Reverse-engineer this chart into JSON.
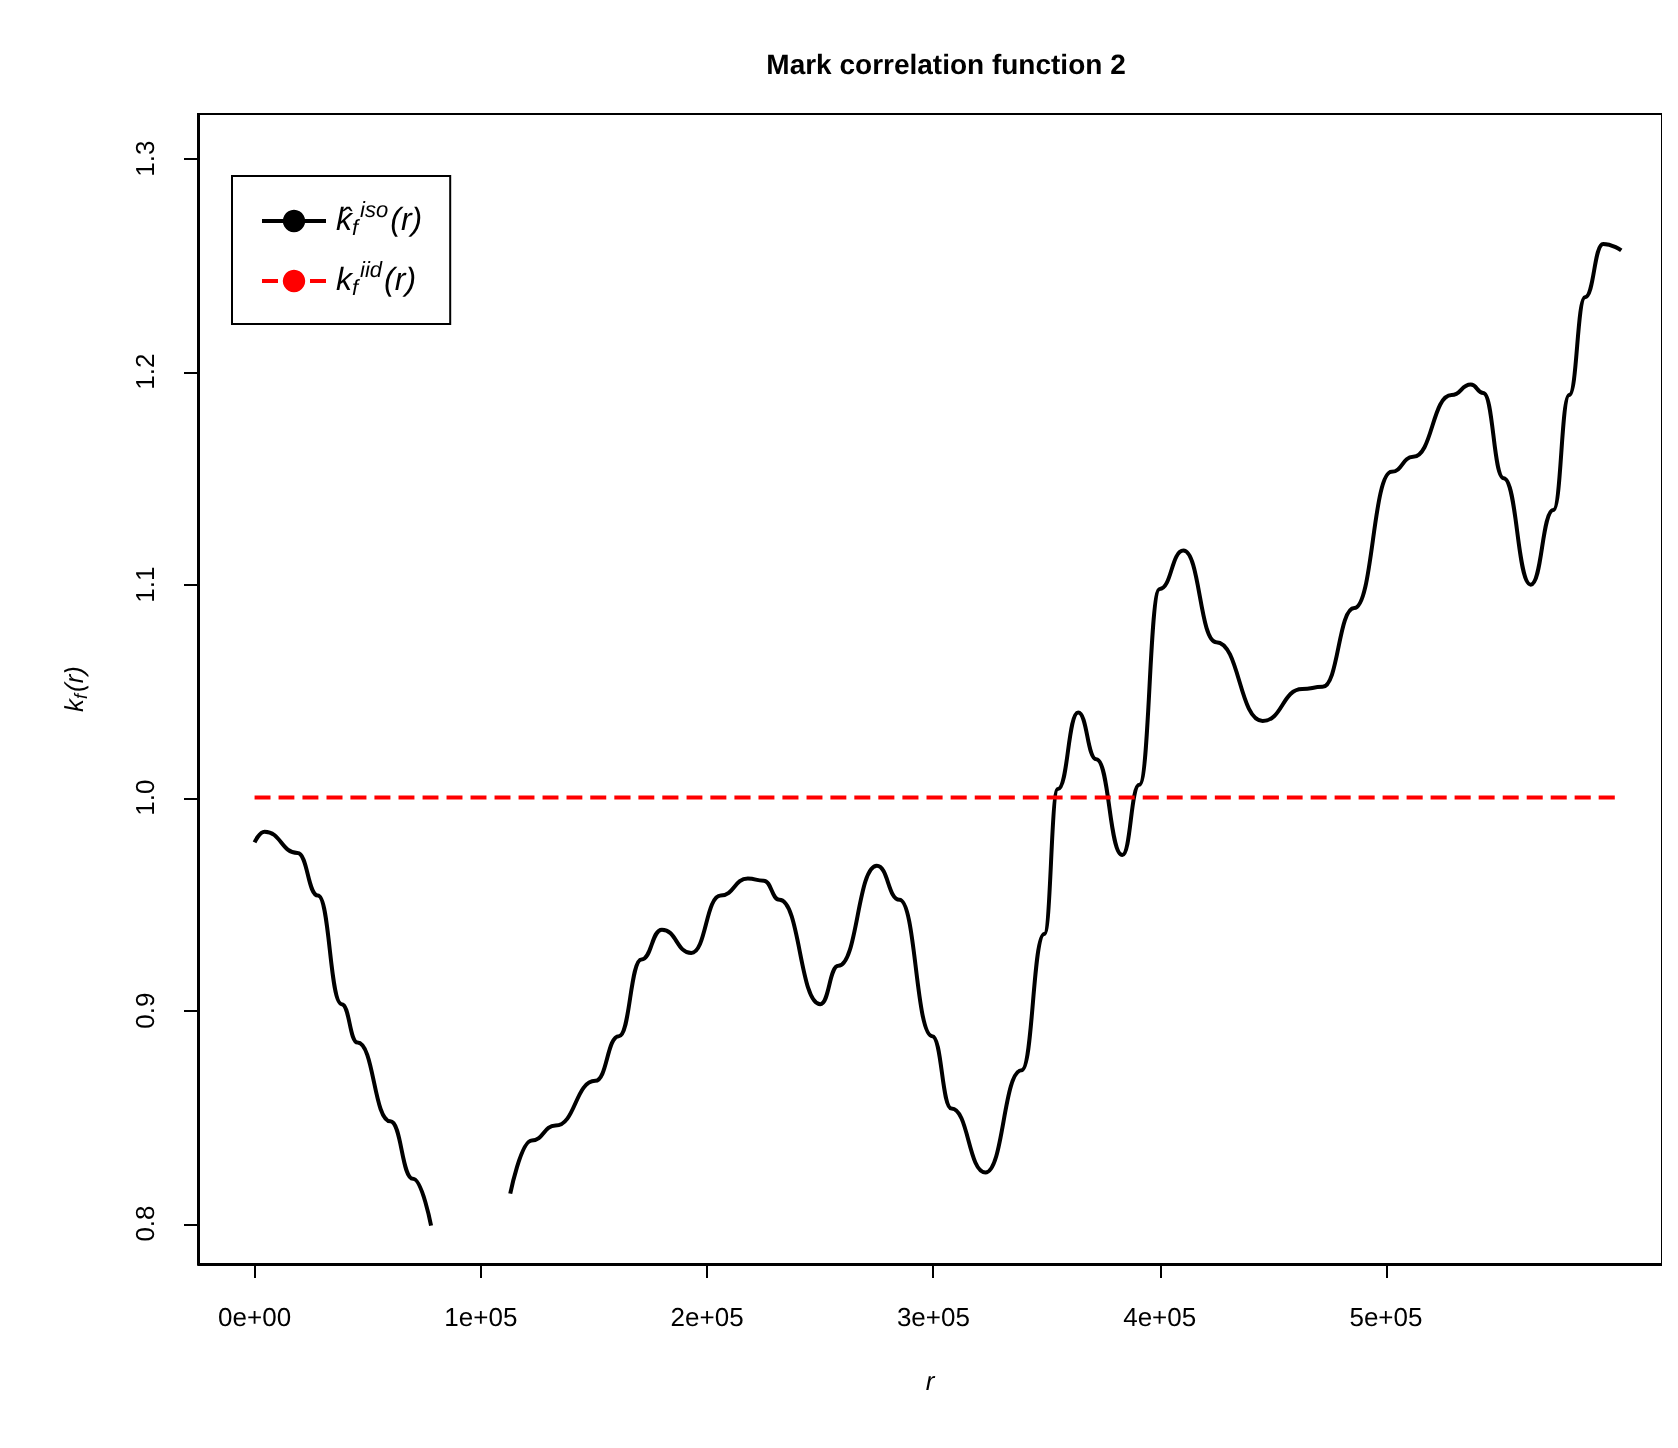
{
  "chart_data": {
    "type": "line",
    "title": "Mark correlation function 2",
    "xlabel": "r",
    "ylabel": "k$_{f}$(r)",
    "xlim": [
      -25000,
      622000
    ],
    "ylim": [
      0.781,
      1.321
    ],
    "xticks": [
      {
        "value": 0,
        "label": "0e+00"
      },
      {
        "value": 100000,
        "label": "1e+05"
      },
      {
        "value": 200000,
        "label": "2e+05"
      },
      {
        "value": 300000,
        "label": "3e+05"
      },
      {
        "value": 400000,
        "label": "4e+05"
      },
      {
        "value": 500000,
        "label": "5e+05"
      }
    ],
    "yticks": [
      0.8,
      0.9,
      {
        "value": 1,
        "label": "1.0"
      },
      1.1,
      1.2,
      1.3
    ],
    "legend": "top left",
    "marker": "none",
    "grid": false,
    "series": [
      {
        "name": "k̂$_{f}$$^{iso}$(r)",
        "color": "#000000",
        "line_style": "solid",
        "x": [
          0,
          4400,
          19000,
          28000,
          38500,
          45500,
          60000,
          70000,
          78000,
          84000,
          90000,
          100700,
          113000,
          122500,
          133000,
          150600,
          161000,
          171000,
          180000,
          193000,
          206000,
          218000,
          225000,
          232000,
          250000,
          258000,
          275000,
          285000,
          299500,
          308000,
          323000,
          339000,
          349000,
          355000,
          364000,
          372000,
          383500,
          391000,
          400000,
          410500,
          425000,
          445500,
          463000,
          472000,
          486000,
          502500,
          512000,
          529000,
          537500,
          543000,
          552000,
          564000,
          574000,
          581000,
          588000,
          596000,
          604000
        ],
        "values": [
          0.979,
          0.984,
          0.974,
          0.954,
          0.903,
          0.885,
          0.848,
          0.821,
          0.799,
          null,
          null,
          null,
          0.814,
          0.839,
          0.846,
          0.867,
          0.888,
          0.924,
          0.938,
          0.927,
          0.954,
          0.962,
          0.961,
          0.952,
          0.903,
          0.921,
          0.968,
          0.952,
          0.888,
          0.854,
          0.824,
          0.872,
          0.936,
          1.004,
          1.04,
          1.018,
          0.973,
          1.006,
          1.098,
          1.116,
          1.073,
          1.036,
          1.051,
          1.052,
          1.089,
          1.153,
          1.16,
          1.189,
          1.194,
          1.19,
          1.15,
          1.1,
          1.135,
          1.189,
          1.235,
          1.26,
          1.257
        ]
      },
      {
        "name": "k$_{f}$$^{iid}$(r)",
        "color": "#ff0000",
        "line_style": "dashed",
        "x": [
          0,
          604000
        ],
        "values": [
          1,
          1
        ]
      }
    ]
  }
}
